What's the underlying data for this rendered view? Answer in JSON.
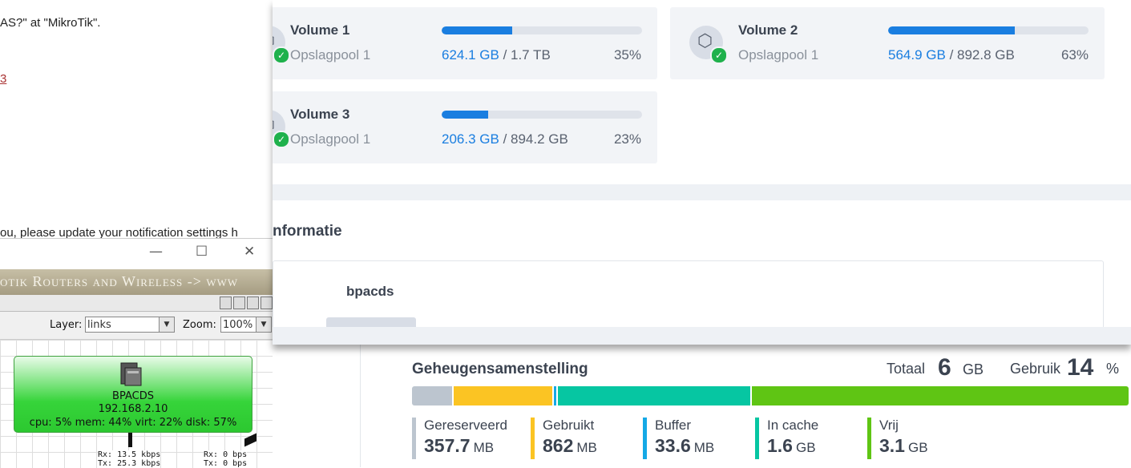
{
  "email": {
    "line1": "AS?\" at \"MikroTik\".",
    "line2": "3",
    "line3": "ou, please update your notification settings h"
  },
  "mikrotik": {
    "window_controls": {
      "minimize": "—",
      "maximize": "☐",
      "close": "✕"
    },
    "banner": "otik Routers and Wireless -> www",
    "layer_label": "Layer:",
    "layer_value": "links",
    "zoom_label": "Zoom:",
    "zoom_value": "100%",
    "node": {
      "name": "BPACDS",
      "ip": "192.168.2.10",
      "stats": "cpu: 5% mem: 44% virt: 22% disk: 57%"
    },
    "traffic_a": {
      "rx": "Rx: 13.5 kbps",
      "tx": "Tx: 25.3 kbps"
    },
    "traffic_b": {
      "rx": "Rx: 0 bps",
      "tx": "Tx: 0 bps"
    }
  },
  "storage": {
    "volumes": [
      {
        "name": "Volume 1",
        "pool": "Opslagpool 1",
        "used": "624.1 GB",
        "total": "/ 1.7 TB",
        "percent_label": "35%",
        "percent": 35
      },
      {
        "name": "Volume 2",
        "pool": "Opslagpool 1",
        "used": "564.9 GB",
        "total": "/ 892.8 GB",
        "percent_label": "63%",
        "percent": 63
      },
      {
        "name": "Volume 3",
        "pool": "Opslagpool 1",
        "used": "206.3 GB",
        "total": "/ 894.2 GB",
        "percent_label": "23%",
        "percent": 23
      }
    ],
    "status_icon": "check-icon",
    "volume_icon": "cube-icon",
    "info_title": "nformatie",
    "host_name": "bpacds"
  },
  "memory": {
    "title": "Geheugensamenstelling",
    "total_label": "Totaal",
    "total_value": "6",
    "total_unit": "GB",
    "usage_label": "Gebruik",
    "usage_value": "14",
    "usage_unit": "%",
    "segments": [
      {
        "name": "Gereserveerd",
        "value": "357.7",
        "unit": "MB",
        "color": "#bcc5cf",
        "fraction": 0.058
      },
      {
        "name": "Gebruikt",
        "value": "862",
        "unit": "MB",
        "color": "#fbc423",
        "fraction": 0.14
      },
      {
        "name": "Buffer",
        "value": "33.6",
        "unit": "MB",
        "color": "#14a9e6",
        "fraction": 0.006
      },
      {
        "name": "In cache",
        "value": "1.6",
        "unit": "GB",
        "color": "#06c6a2",
        "fraction": 0.27
      },
      {
        "name": "Vrij",
        "value": "3.1",
        "unit": "GB",
        "color": "#5fc514",
        "fraction": 0.526
      }
    ]
  }
}
